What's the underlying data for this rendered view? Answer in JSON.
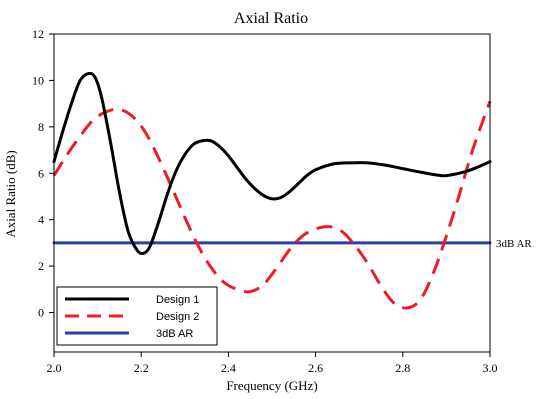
{
  "chart_data": {
    "type": "line",
    "title": "Axial Ratio",
    "xlabel": "Frequency (GHz)",
    "ylabel": "Axial Ratio (dB)",
    "xlim": [
      2.0,
      3.0
    ],
    "ylim": [
      -1.7,
      12
    ],
    "x_ticks": [
      "2.0",
      "2.2",
      "2.4",
      "2.6",
      "2.8",
      "3.0"
    ],
    "x_tick_values": [
      2.0,
      2.2,
      2.4,
      2.6,
      2.8,
      3.0
    ],
    "y_ticks": [
      "0",
      "2",
      "4",
      "6",
      "8",
      "10",
      "12"
    ],
    "y_tick_values": [
      0,
      2,
      4,
      6,
      8,
      10,
      12
    ],
    "grid": false,
    "legend_position": "bottom-left",
    "annotation": "3dB AR",
    "series": [
      {
        "name": "Design 1",
        "color": "#000000",
        "dash": "solid",
        "x": [
          2.0,
          2.02,
          2.04,
          2.06,
          2.08,
          2.095,
          2.11,
          2.13,
          2.15,
          2.17,
          2.19,
          2.205,
          2.22,
          2.24,
          2.26,
          2.28,
          2.3,
          2.32,
          2.34,
          2.36,
          2.38,
          2.4,
          2.42,
          2.44,
          2.46,
          2.48,
          2.5,
          2.52,
          2.54,
          2.56,
          2.58,
          2.6,
          2.64,
          2.68,
          2.72,
          2.76,
          2.8,
          2.84,
          2.88,
          2.9,
          2.94,
          2.97,
          3.0
        ],
        "y": [
          6.5,
          7.8,
          9.0,
          10.0,
          10.3,
          10.1,
          9.2,
          7.3,
          5.2,
          3.5,
          2.7,
          2.55,
          2.85,
          3.9,
          5.1,
          6.1,
          6.8,
          7.25,
          7.4,
          7.4,
          7.15,
          6.75,
          6.25,
          5.75,
          5.35,
          5.05,
          4.9,
          4.95,
          5.2,
          5.55,
          5.9,
          6.15,
          6.4,
          6.45,
          6.45,
          6.35,
          6.2,
          6.05,
          5.92,
          5.9,
          6.05,
          6.25,
          6.5
        ]
      },
      {
        "name": "Design 2",
        "color": "#ee1c25",
        "dash": "dashed",
        "x": [
          2.0,
          2.03,
          2.06,
          2.09,
          2.12,
          2.15,
          2.18,
          2.21,
          2.24,
          2.27,
          2.3,
          2.33,
          2.36,
          2.39,
          2.42,
          2.45,
          2.48,
          2.51,
          2.54,
          2.57,
          2.6,
          2.63,
          2.66,
          2.69,
          2.72,
          2.75,
          2.78,
          2.81,
          2.84,
          2.87,
          2.9,
          2.93,
          2.96,
          3.0
        ],
        "y": [
          5.9,
          6.8,
          7.6,
          8.3,
          8.65,
          8.75,
          8.45,
          7.75,
          6.65,
          5.4,
          4.1,
          2.9,
          1.95,
          1.3,
          1.0,
          0.9,
          1.2,
          1.9,
          2.7,
          3.3,
          3.6,
          3.7,
          3.5,
          2.9,
          2.1,
          1.15,
          0.4,
          0.2,
          0.55,
          1.7,
          3.3,
          5.1,
          7.0,
          9.1
        ]
      },
      {
        "name": "3dB AR",
        "color": "#2b3da8",
        "dash": "solid",
        "x": [
          2.0,
          3.0
        ],
        "y": [
          3.0,
          3.0
        ]
      }
    ]
  }
}
